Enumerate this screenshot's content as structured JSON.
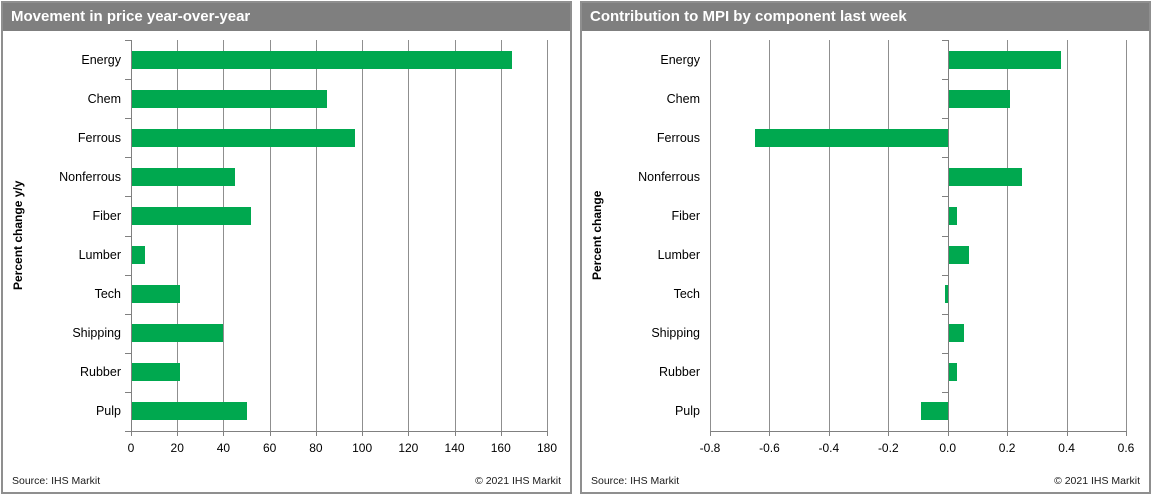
{
  "chart_data": [
    {
      "type": "bar",
      "orientation": "horizontal",
      "title": "Movement in price year-over-year",
      "ylabel": "Percent change y/y",
      "xlabel": "",
      "categories": [
        "Energy",
        "Chem",
        "Ferrous",
        "Nonferrous",
        "Fiber",
        "Lumber",
        "Tech",
        "Shipping",
        "Rubber",
        "Pulp"
      ],
      "values": [
        165,
        85,
        97,
        45,
        52,
        6,
        21,
        40,
        21,
        50
      ],
      "xlim": [
        0,
        180
      ],
      "xticks": [
        0,
        20,
        40,
        60,
        80,
        100,
        120,
        140,
        160,
        180
      ],
      "xtick_labels": [
        "0",
        "20",
        "40",
        "60",
        "80",
        "100",
        "120",
        "140",
        "160",
        "180"
      ],
      "grid": true,
      "legend": false
    },
    {
      "type": "bar",
      "orientation": "horizontal",
      "title": "Contribution to MPI by component last week",
      "ylabel": "Percent change",
      "xlabel": "",
      "categories": [
        "Energy",
        "Chem",
        "Ferrous",
        "Nonferrous",
        "Fiber",
        "Lumber",
        "Tech",
        "Shipping",
        "Rubber",
        "Pulp"
      ],
      "values": [
        0.38,
        0.21,
        -0.65,
        0.25,
        0.03,
        0.07,
        -0.01,
        0.055,
        0.03,
        -0.09
      ],
      "xlim": [
        -0.8,
        0.6
      ],
      "xticks": [
        -0.8,
        -0.6,
        -0.4,
        -0.2,
        0,
        0.2,
        0.4,
        0.6
      ],
      "xtick_labels": [
        "-0.8",
        "-0.6",
        "-0.4",
        "-0.2",
        "0.0",
        "0.2",
        "0.4",
        "0.6"
      ],
      "grid": true,
      "legend": false
    }
  ],
  "footer": {
    "source": "Source: IHS Markit",
    "copyright": "© 2021  IHS Markit"
  },
  "colors": {
    "bar_green": "#00a84f",
    "header_bg": "#7f7f7f",
    "header_text": "#ffffff",
    "gridline": "#8f8f8f",
    "axis": "#808080",
    "panel_border": "#8f8f8f"
  }
}
